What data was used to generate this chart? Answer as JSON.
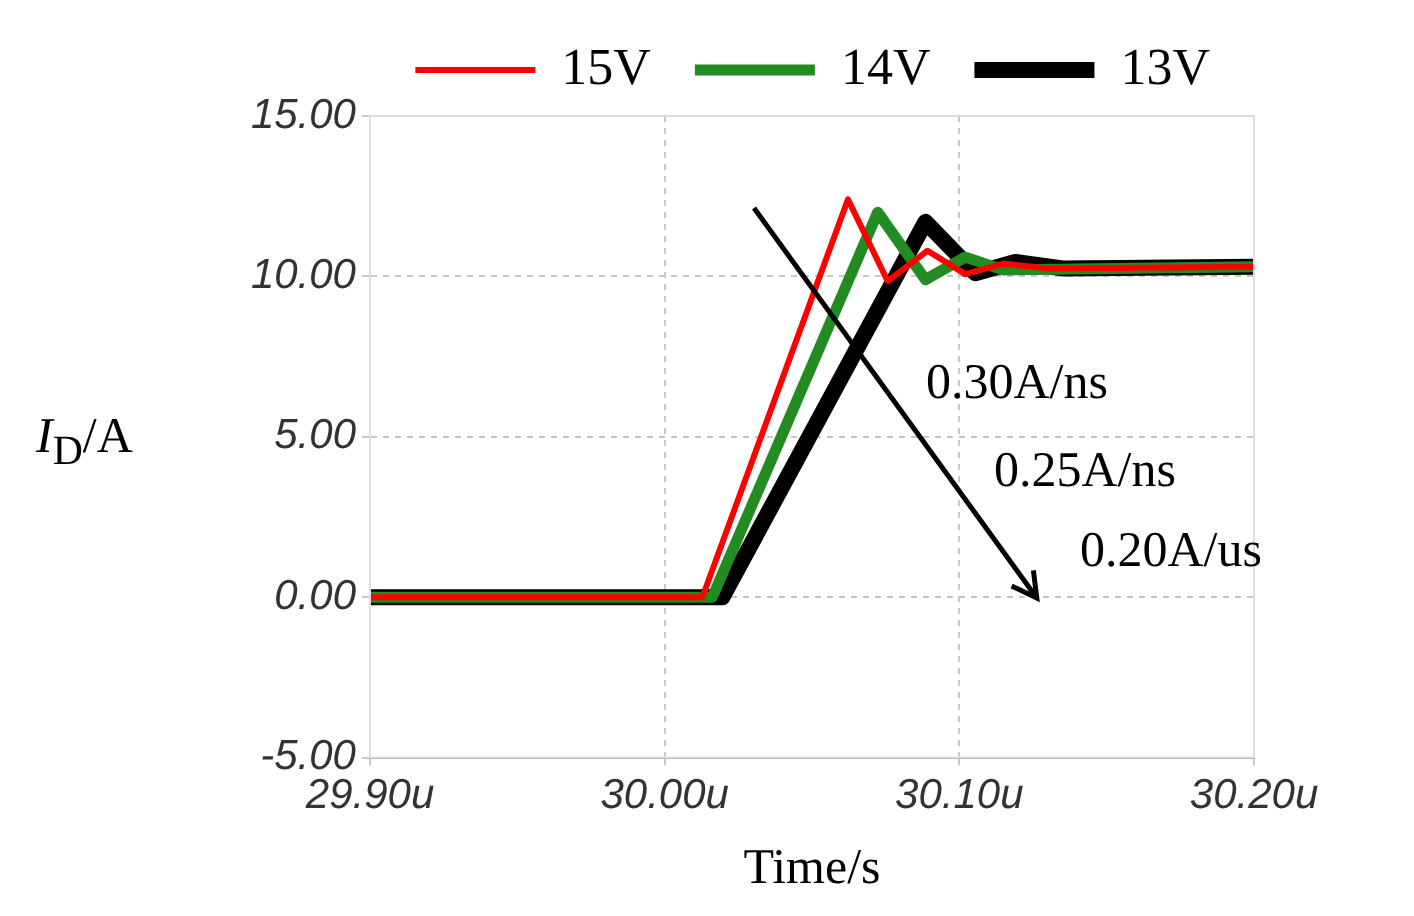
{
  "chart_data": {
    "type": "line",
    "xlabel": "Time/s",
    "ylabel": "I$_{D}$/A",
    "xlim": [
      29.9,
      30.2
    ],
    "xticks": [
      {
        "value": 29.9,
        "label": "29.90u"
      },
      {
        "value": 30.0,
        "label": "30.00u"
      },
      {
        "value": 30.1,
        "label": "30.10u"
      },
      {
        "value": 30.2,
        "label": "30.20u"
      }
    ],
    "ylim": [
      -5,
      15
    ],
    "yticks": [
      {
        "value": -5,
        "label": "-5.00"
      },
      {
        "value": 0,
        "label": "0.00"
      },
      {
        "value": 5,
        "label": "5.00"
      },
      {
        "value": 10,
        "label": "10.00"
      },
      {
        "value": 15,
        "label": "15.00"
      }
    ],
    "grid": true,
    "legend": "top",
    "marker": "none",
    "line_style": "solid",
    "annotations": [
      "0.30A/ns",
      "0.25A/ns",
      "0.20A/us"
    ],
    "series": [
      {
        "name": "15V",
        "color": "#ff0000",
        "x": [
          29.9,
          30.0,
          30.0128,
          30.0622,
          30.0757,
          30.0892,
          30.102,
          30.115,
          30.13,
          30.2
        ],
        "values": [
          0,
          0,
          0,
          12.4,
          9.85,
          10.8,
          10.07,
          10.4,
          10.25,
          10.3
        ]
      },
      {
        "name": "14V",
        "color": "#228b22",
        "x": [
          29.9,
          30.0162,
          30.0723,
          30.0885,
          30.102,
          30.115,
          30.2
        ],
        "values": [
          0,
          0,
          12.0,
          9.9,
          10.6,
          10.2,
          10.3
        ]
      },
      {
        "name": "13V",
        "color": "#000000",
        "x": [
          29.9,
          30.0196,
          30.0885,
          30.1054,
          30.119,
          30.135,
          30.2
        ],
        "values": [
          0,
          0,
          11.7,
          10.1,
          10.45,
          10.25,
          10.3
        ]
      }
    ]
  }
}
